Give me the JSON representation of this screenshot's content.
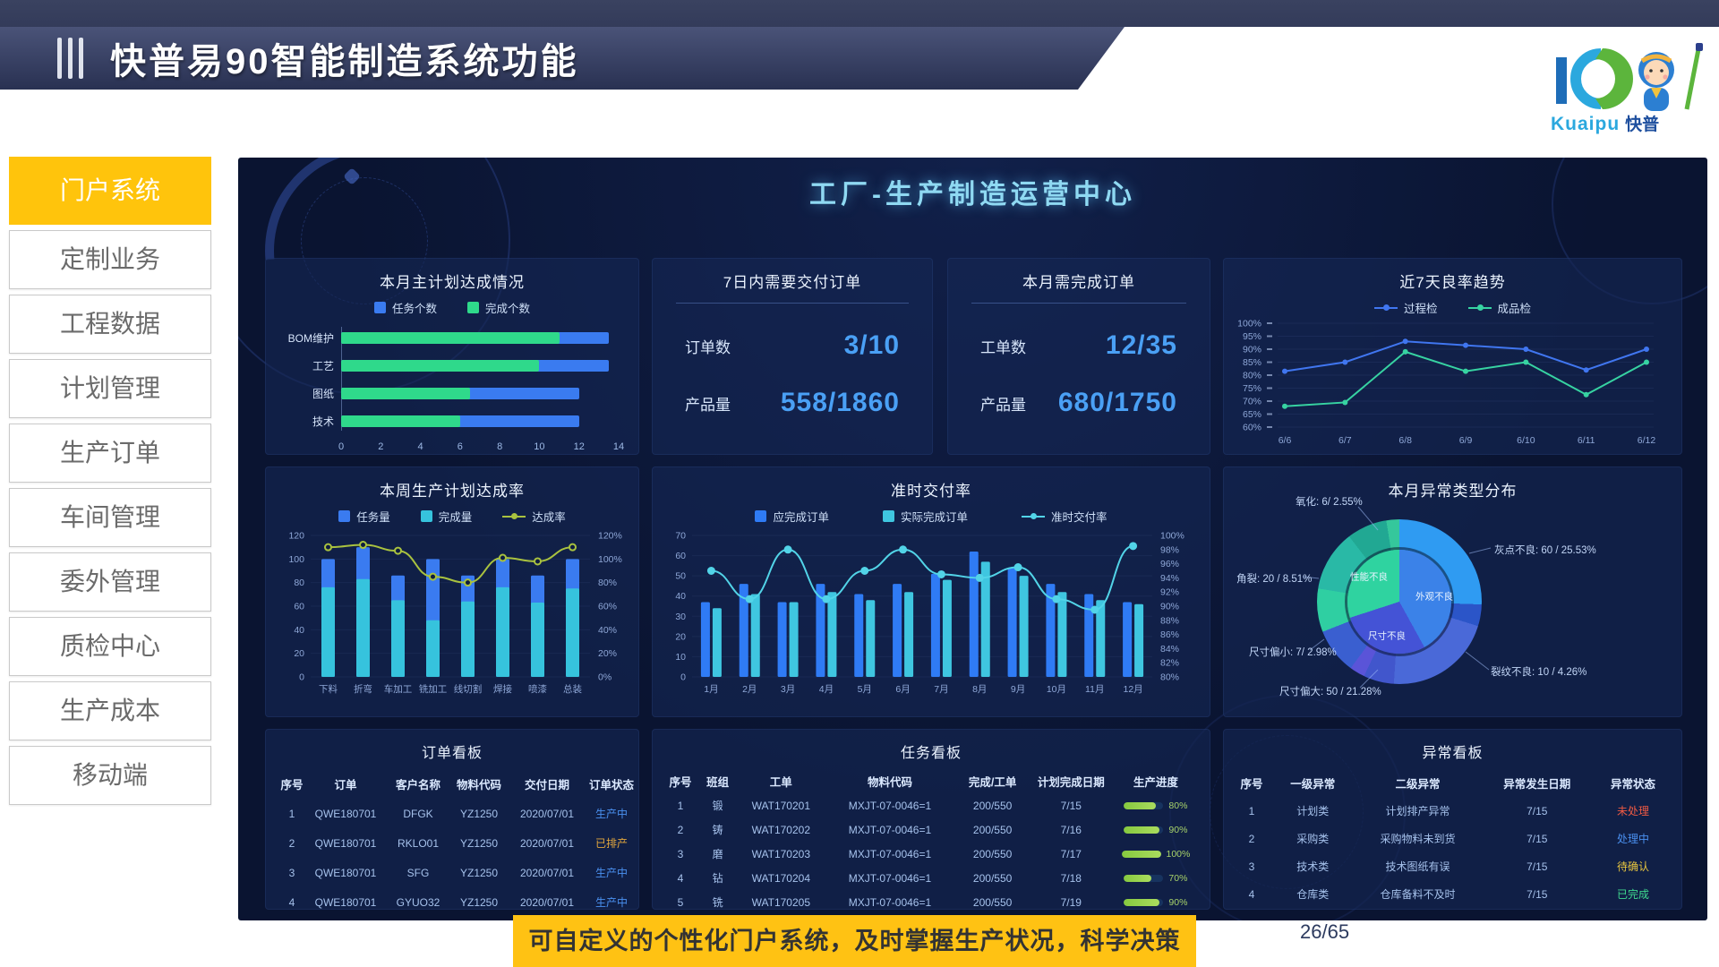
{
  "header": {
    "title": "快普易90智能制造系统功能"
  },
  "logo": {
    "brand_en": "Kuaipu",
    "brand_cn": "快普"
  },
  "sidebar": {
    "items": [
      {
        "label": "门户系统",
        "active": true
      },
      {
        "label": "定制业务",
        "active": false
      },
      {
        "label": "工程数据",
        "active": false
      },
      {
        "label": "计划管理",
        "active": false
      },
      {
        "label": "生产订单",
        "active": false
      },
      {
        "label": "车间管理",
        "active": false
      },
      {
        "label": "委外管理",
        "active": false
      },
      {
        "label": "质检中心",
        "active": false
      },
      {
        "label": "生产成本",
        "active": false
      },
      {
        "label": "移动端",
        "active": false
      }
    ]
  },
  "dashboard": {
    "title": "工厂-生产制造运营中心"
  },
  "panels": {
    "deliver7": {
      "title": "7日内需要交付订单",
      "stats": [
        {
          "label": "订单数",
          "value": "3/10"
        },
        {
          "label": "产品量",
          "value": "558/1860"
        }
      ]
    },
    "month_orders": {
      "title": "本月需完成订单",
      "stats": [
        {
          "label": "工单数",
          "value": "12/35"
        },
        {
          "label": "产品量",
          "value": "680/1750"
        }
      ]
    }
  },
  "chart_data": [
    {
      "type": "bar",
      "orientation": "horizontal",
      "title": "本月主计划达成情况",
      "categories": [
        "BOM维护",
        "工艺",
        "图纸",
        "技术"
      ],
      "series": [
        {
          "name": "任务个数",
          "color": "#3a7bf0",
          "values": [
            13.5,
            13.5,
            12,
            12
          ]
        },
        {
          "name": "完成个数",
          "color": "#2fd98b",
          "values": [
            11,
            10,
            6.5,
            6
          ]
        }
      ],
      "xlim": [
        0,
        14
      ],
      "xticks": [
        0,
        2,
        4,
        6,
        8,
        10,
        12,
        14
      ]
    },
    {
      "type": "line",
      "title": "近7天良率趋势",
      "x": [
        "6/6",
        "6/7",
        "6/8",
        "6/9",
        "6/10",
        "6/11",
        "6/12"
      ],
      "series": [
        {
          "name": "过程检",
          "color": "#4076f0",
          "values": [
            81.5,
            85,
            93,
            91.5,
            90,
            82,
            90
          ]
        },
        {
          "name": "成品检",
          "color": "#37d3a2",
          "values": [
            68,
            69.5,
            89,
            81.5,
            85,
            72.5,
            85
          ]
        }
      ],
      "ylim": [
        60,
        100
      ],
      "ytick_step": 5,
      "ytick_suffix": "%"
    },
    {
      "type": "bar+line",
      "title": "本周生产计划达成率",
      "bar_mode": "overlay",
      "categories": [
        "下料",
        "折弯",
        "车加工",
        "铣加工",
        "线切割",
        "焊接",
        "喷漆",
        "总装"
      ],
      "bars": [
        {
          "name": "任务量",
          "color": "#3a7bf0",
          "values": [
            100,
            110,
            86,
            100,
            86,
            100,
            86,
            100
          ]
        },
        {
          "name": "完成量",
          "color": "#36c3dd",
          "values": [
            76,
            83,
            65,
            48,
            64,
            76,
            63,
            75
          ]
        }
      ],
      "line": {
        "name": "达成率",
        "color": "#a9c23f",
        "values": [
          110,
          112,
          107,
          85,
          80,
          101,
          98,
          110
        ]
      },
      "left_max": 120,
      "left_step": 20,
      "right_min": 0,
      "right_max": 120,
      "right_step": 20
    },
    {
      "type": "bar+line",
      "title": "准时交付率",
      "bar_mode": "group",
      "categories": [
        "1月",
        "2月",
        "3月",
        "4月",
        "5月",
        "6月",
        "7月",
        "8月",
        "9月",
        "10月",
        "11月",
        "12月"
      ],
      "bars": [
        {
          "name": "应完成订单",
          "color": "#2f7bf5",
          "values": [
            37,
            46,
            37,
            46,
            41,
            46,
            51,
            62,
            54,
            46,
            41,
            37
          ]
        },
        {
          "name": "实际完成订单",
          "color": "#3fc6e0",
          "values": [
            34,
            41,
            37,
            42,
            38,
            42,
            48,
            57,
            50,
            42,
            38,
            36
          ]
        }
      ],
      "line": {
        "name": "准时交付率",
        "color": "#52d4e8",
        "values": [
          95,
          91,
          98,
          91,
          95,
          98,
          94.5,
          94,
          95.5,
          91,
          89.5,
          98.5
        ]
      },
      "left_max": 70,
      "left_step": 10,
      "right_min": 80,
      "right_max": 100,
      "right_step": 2
    },
    {
      "type": "pie",
      "title": "本月异常类型分布",
      "slices": [
        {
          "name": "灰点不良",
          "value": 60,
          "pct": 25.53,
          "color": "#2f9bf2",
          "display": "灰点不良: 60 / 25.53%"
        },
        {
          "name": "裂纹不良",
          "value": 10,
          "pct": 4.26,
          "color": "#2b55c8",
          "display": "裂纹不良: 10 / 4.26%"
        },
        {
          "name": "尺寸偏大",
          "value": 50,
          "pct": 21.28,
          "color": "#4a69d8",
          "display": "尺寸偏大: 50 / 21.28%"
        },
        {
          "pct": 6,
          "color": "#4156cc"
        },
        {
          "name": "尺寸偏小",
          "value": 7,
          "pct": 2.98,
          "color": "#5a54d8",
          "display": "尺寸偏小: 7/ 2.98%"
        },
        {
          "pct": 9,
          "color": "#3a5fd0"
        },
        {
          "name": "角裂",
          "value": 20,
          "pct": 8.51,
          "color": "#2fcfa2",
          "display": "角裂: 20 / 8.51%"
        },
        {
          "pct": 12,
          "color": "#29b9a6"
        },
        {
          "pct": 7.89,
          "color": "#21a893"
        },
        {
          "name": "氧化",
          "value": 6,
          "pct": 2.55,
          "color": "#35c79c",
          "display": "氧化: 6/ 2.55%"
        }
      ],
      "inner": [
        {
          "name": "外观不良",
          "pct": 42,
          "color": "#3b82e8"
        },
        {
          "name": "尺寸不良",
          "pct": 28,
          "color": "#4453d6"
        },
        {
          "name": "性能不良",
          "pct": 30,
          "color": "#2fd3a0"
        }
      ]
    }
  ],
  "tables": {
    "status_colors": {
      "生产中": "#4a90f0",
      "已排产": "#e2a63d",
      "未处理": "#f05a43",
      "处理中": "#4a90f0",
      "待确认": "#e8c63f",
      "已完成": "#3fd98f"
    },
    "order_board": {
      "title": "订单看板",
      "headers": [
        "序号",
        "订单",
        "客户名称",
        "物料代码",
        "交付日期",
        "订单状态"
      ],
      "rows": [
        [
          "1",
          "QWE180701",
          "DFGK",
          "YZ1250",
          "2020/07/01",
          "生产中"
        ],
        [
          "2",
          "QWE180701",
          "RKLO01",
          "YZ1250",
          "2020/07/01",
          "已排产"
        ],
        [
          "3",
          "QWE180701",
          "SFG",
          "YZ1250",
          "2020/07/01",
          "生产中"
        ],
        [
          "4",
          "QWE180701",
          "GYUO32",
          "YZ1250",
          "2020/07/01",
          "生产中"
        ]
      ]
    },
    "task_board": {
      "title": "任务看板",
      "headers": [
        "序号",
        "班组",
        "工单",
        "物料代码",
        "完成/工单",
        "计划完成日期",
        "生产进度"
      ],
      "rows": [
        [
          "1",
          "锻",
          "WAT170201",
          "MXJT-07-0046=1",
          "200/550",
          "7/15",
          {
            "progress": 80
          }
        ],
        [
          "2",
          "铸",
          "WAT170202",
          "MXJT-07-0046=1",
          "200/550",
          "7/16",
          {
            "progress": 90
          }
        ],
        [
          "3",
          "磨",
          "WAT170203",
          "MXJT-07-0046=1",
          "200/550",
          "7/17",
          {
            "progress": 100
          }
        ],
        [
          "4",
          "钻",
          "WAT170204",
          "MXJT-07-0046=1",
          "200/550",
          "7/18",
          {
            "progress": 70
          }
        ],
        [
          "5",
          "铣",
          "WAT170205",
          "MXJT-07-0046=1",
          "200/550",
          "7/19",
          {
            "progress": 90
          }
        ]
      ]
    },
    "exception_board": {
      "title": "异常看板",
      "headers": [
        "序号",
        "一级异常",
        "二级异常",
        "异常发生日期",
        "异常状态"
      ],
      "rows": [
        [
          "1",
          "计划类",
          "计划排产异常",
          "7/15",
          "未处理"
        ],
        [
          "2",
          "采购类",
          "采购物料未到货",
          "7/15",
          "处理中"
        ],
        [
          "3",
          "技术类",
          "技术图纸有误",
          "7/15",
          "待确认"
        ],
        [
          "4",
          "仓库类",
          "仓库备料不及时",
          "7/15",
          "已完成"
        ]
      ]
    }
  },
  "footer": {
    "banner": "可自定义的个性化门户系统，及时掌握生产状况，科学决策",
    "page": "26/65"
  }
}
